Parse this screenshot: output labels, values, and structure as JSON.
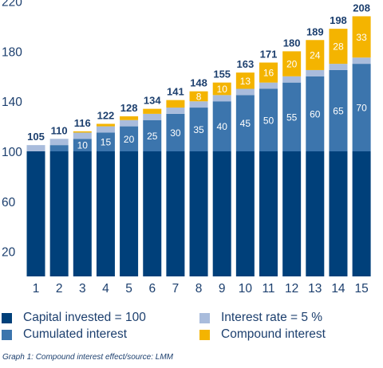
{
  "chart_data": {
    "type": "bar",
    "stacked": true,
    "categories": [
      "1",
      "2",
      "3",
      "4",
      "5",
      "6",
      "7",
      "8",
      "9",
      "10",
      "11",
      "12",
      "13",
      "14",
      "15"
    ],
    "totals": [
      105,
      110,
      116,
      122,
      128,
      134,
      141,
      148,
      155,
      163,
      171,
      180,
      189,
      198,
      208
    ],
    "series": [
      {
        "name": "Capital invested = 100",
        "color": "#00407a",
        "values": [
          100,
          100,
          100,
          100,
          100,
          100,
          100,
          100,
          100,
          100,
          100,
          100,
          100,
          100,
          100
        ]
      },
      {
        "name": "Cumulated interest",
        "color": "#3c75ad",
        "values": [
          0,
          5,
          10,
          15,
          20,
          25,
          30,
          35,
          40,
          45,
          50,
          55,
          60,
          65,
          70
        ]
      },
      {
        "name": "Interest rate = 5 %",
        "color": "#a9bcdc",
        "values": [
          5,
          5,
          5,
          5,
          5,
          5,
          5,
          5,
          5,
          5,
          5,
          5,
          5,
          5,
          5
        ]
      },
      {
        "name": "Compound interest",
        "color": "#f4b400",
        "values": [
          0,
          0,
          1,
          2,
          3,
          4,
          6,
          8,
          10,
          13,
          16,
          20,
          24,
          28,
          33
        ]
      }
    ],
    "segment_labels": {
      "Cumulated interest": [
        "",
        "",
        "10",
        "15",
        "20",
        "25",
        "30",
        "35",
        "40",
        "45",
        "50",
        "55",
        "60",
        "65",
        "70"
      ],
      "Compound interest": [
        "",
        "",
        "",
        "",
        "",
        "",
        "",
        "8",
        "10",
        "13",
        "16",
        "20",
        "24",
        "28",
        "33"
      ]
    },
    "y_ticks": [
      20,
      60,
      100,
      140,
      180,
      220
    ],
    "ylim": [
      0,
      220
    ],
    "grid": false,
    "legend_position": "bottom"
  },
  "caption": "Graph 1: Compound interest effect/source: LMM"
}
